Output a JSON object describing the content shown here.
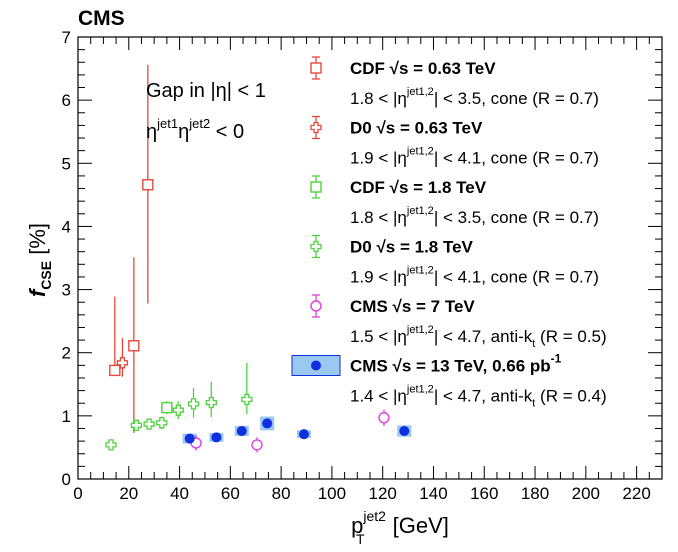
{
  "header": {
    "experiment": "CMS"
  },
  "chart_data": {
    "type": "scatter",
    "xlabel": {
      "main": "p",
      "sub": "T",
      "sup": "jet2",
      "unit": " [GeV]"
    },
    "ylabel": {
      "main": "f",
      "sub": "CSE",
      "unit": " [%]"
    },
    "xlim": [
      0,
      230
    ],
    "ylim": [
      0,
      7
    ],
    "xticks": [
      "0",
      "20",
      "40",
      "60",
      "80",
      "100",
      "120",
      "140",
      "160",
      "180",
      "200",
      "220"
    ],
    "yticks": [
      "0",
      "1",
      "2",
      "3",
      "4",
      "5",
      "6",
      "7"
    ],
    "grid": false,
    "legend_position": "top-right",
    "annotations": [
      {
        "main": "Gap in |η| < 1"
      },
      {
        "p1": "η",
        "s1": "jet1",
        "p2": "η",
        "s2": "jet2",
        "p3": " < 0"
      }
    ],
    "series": [
      {
        "name": "CDF  √s = 0.63 TeV",
        "legend_sub": {
          "pre": "1.8 < |η",
          "sup": "jet1,2",
          "post": "| < 3.5, cone (R = 0.7)"
        },
        "marker": "open-square",
        "color": "#e8473a",
        "points": [
          {
            "x": 14.5,
            "y": 1.72,
            "err": [
              0.0,
              1.17
            ]
          },
          {
            "x": 22.0,
            "y": 2.11,
            "err": [
              1.38,
              1.4
            ]
          },
          {
            "x": 27.5,
            "y": 4.66,
            "err": [
              1.88,
              1.9
            ]
          }
        ]
      },
      {
        "name": "D0  √s = 0.63 TeV",
        "legend_sub": {
          "pre": "1.9 < |η",
          "sup": "jet1,2",
          "post": "| < 4.1, cone (R = 0.7)"
        },
        "marker": "open-cross",
        "color": "#e8473a",
        "points": [
          {
            "x": 17.5,
            "y": 1.84,
            "err": [
              0.22,
              0.39
            ]
          }
        ]
      },
      {
        "name": "CDF  √s = 1.8 TeV",
        "legend_sub": {
          "pre": "1.8 < |η",
          "sup": "jet1,2",
          "post": "| < 3.5, cone (R = 0.7)"
        },
        "marker": "open-square",
        "color": "#4bd43b",
        "points": [
          {
            "x": 35.0,
            "y": 1.13,
            "err": [
              0.1,
              0.1
            ]
          }
        ]
      },
      {
        "name": "D0  √s = 1.8 TeV",
        "legend_sub": {
          "pre": "1.9 < |η",
          "sup": "jet1,2",
          "post": "| < 4.1, cone (R = 0.7)"
        },
        "marker": "open-cross",
        "color": "#4bd43b",
        "points": [
          {
            "x": 13.0,
            "y": 0.54,
            "err": [
              0.08,
              0.08
            ]
          },
          {
            "x": 23.0,
            "y": 0.85,
            "err": [
              0.08,
              0.08
            ]
          },
          {
            "x": 28.0,
            "y": 0.87,
            "err": [
              0.08,
              0.08
            ]
          },
          {
            "x": 33.0,
            "y": 0.89,
            "err": [
              0.1,
              0.1
            ]
          },
          {
            "x": 39.5,
            "y": 1.09,
            "err": [
              0.14,
              0.14
            ]
          },
          {
            "x": 45.5,
            "y": 1.19,
            "err": [
              0.22,
              0.25
            ]
          },
          {
            "x": 52.5,
            "y": 1.21,
            "err": [
              0.23,
              0.33
            ]
          },
          {
            "x": 66.5,
            "y": 1.26,
            "err": [
              0.23,
              0.58
            ]
          }
        ]
      },
      {
        "name": "CMS  √s = 7 TeV",
        "legend_sub": {
          "pre": "1.5 < |η",
          "sup": "jet1,2",
          "post": "| < 4.7, anti-k",
          "sub": "t",
          "post2": " (R = 0.5)"
        },
        "marker": "open-circle",
        "color": "#e040e0",
        "points": [
          {
            "x": 46.5,
            "y": 0.57,
            "err": [
              0.12,
              0.12
            ]
          },
          {
            "x": 70.5,
            "y": 0.54,
            "err": [
              0.12,
              0.12
            ]
          },
          {
            "x": 120.5,
            "y": 0.97,
            "err": [
              0.13,
              0.13
            ]
          }
        ]
      },
      {
        "name": "CMS  √s = 13 TeV, 0.66 pb",
        "name_sup": "-1",
        "legend_sub": {
          "pre": "1.4 < |η",
          "sup": "jet1,2",
          "post": "| < 4.7, anti-k",
          "sub": "t",
          "post2": " (R = 0.4)"
        },
        "marker": "filled-circle-band",
        "color": "#1030e0",
        "band_color": "#9ac8f0",
        "points": [
          {
            "x": 44.0,
            "y": 0.64,
            "err": [
              0.06,
              0.06
            ],
            "band": 0.08
          },
          {
            "x": 54.5,
            "y": 0.66,
            "err": [
              0.05,
              0.05
            ],
            "band": 0.07
          },
          {
            "x": 64.5,
            "y": 0.76,
            "err": [
              0.05,
              0.05
            ],
            "band": 0.08
          },
          {
            "x": 74.5,
            "y": 0.88,
            "err": [
              0.06,
              0.06
            ],
            "band": 0.11
          },
          {
            "x": 89.0,
            "y": 0.71,
            "err": [
              0.04,
              0.04
            ],
            "band": 0.06
          },
          {
            "x": 128.5,
            "y": 0.76,
            "err": [
              0.05,
              0.05
            ],
            "band": 0.09
          }
        ]
      }
    ]
  }
}
